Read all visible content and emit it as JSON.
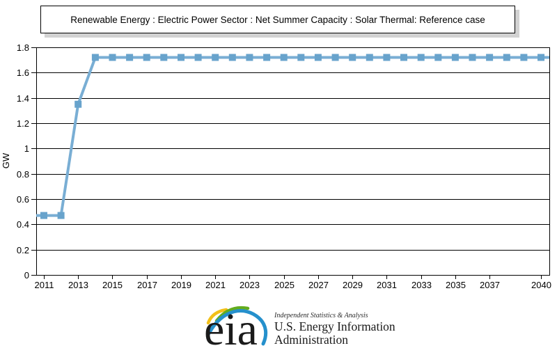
{
  "chart_data": {
    "type": "line",
    "title": "Renewable Energy : Electric Power Sector : Net Summer Capacity : Solar Thermal: Reference case",
    "ylabel": "GW",
    "ylim": [
      0,
      1.8
    ],
    "ytick_step": 0.2,
    "y_tick_labels": [
      "0",
      "0.2",
      "0.4",
      "0.6",
      "0.8",
      "1",
      "1.2",
      "1.4",
      "1.6",
      "1.8"
    ],
    "x_tick_labels": [
      "2011",
      "2013",
      "2015",
      "2017",
      "2019",
      "2021",
      "2023",
      "2025",
      "2027",
      "2029",
      "2031",
      "2033",
      "2035",
      "2037",
      "2040"
    ],
    "x": [
      2011,
      2012,
      2013,
      2014,
      2015,
      2016,
      2017,
      2018,
      2019,
      2020,
      2021,
      2022,
      2023,
      2024,
      2025,
      2026,
      2027,
      2028,
      2029,
      2030,
      2031,
      2032,
      2033,
      2034,
      2035,
      2036,
      2037,
      2038,
      2039,
      2040
    ],
    "series": [
      {
        "name": "Solar Thermal",
        "values": [
          0.47,
          0.47,
          1.35,
          1.72,
          1.72,
          1.72,
          1.72,
          1.72,
          1.72,
          1.72,
          1.72,
          1.72,
          1.72,
          1.72,
          1.72,
          1.72,
          1.72,
          1.72,
          1.72,
          1.72,
          1.72,
          1.72,
          1.72,
          1.72,
          1.72,
          1.72,
          1.72,
          1.72,
          1.72,
          1.72
        ]
      }
    ],
    "grid": true,
    "legend_position": "none",
    "marker": "square",
    "line_color": "#79AED4",
    "marker_color": "#68A3CC",
    "grid_color": "#000000"
  },
  "footer": {
    "logo_text": "eia",
    "tagline": "Independent Statistics & Analysis",
    "org_line1": "U.S. Energy Information",
    "org_line2": "Administration",
    "arc_yellow": "#F2C019",
    "arc_green": "#63AC1E",
    "arc_blue": "#2590CC"
  }
}
